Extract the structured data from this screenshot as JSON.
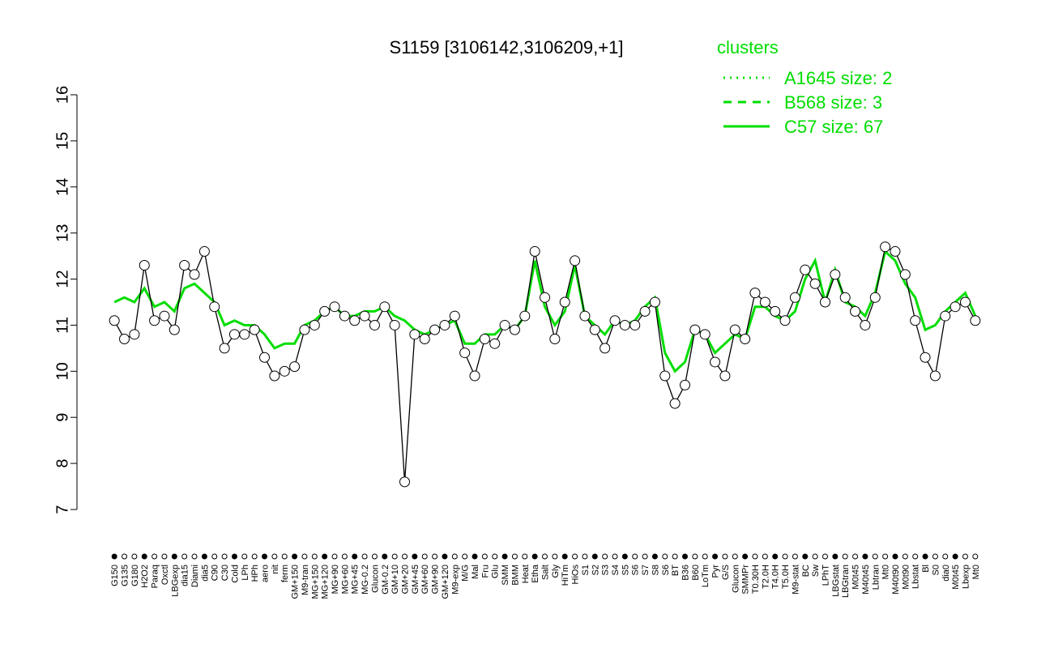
{
  "chart_data": {
    "type": "line",
    "title": "S1159 [3106142,3106209,+1]",
    "legend_title": "clusters",
    "ylim": [
      7,
      16
    ],
    "yticks": [
      7,
      8,
      9,
      10,
      11,
      12,
      13,
      14,
      15,
      16
    ],
    "categories": [
      "G150",
      "G135",
      "G180",
      "H2O2",
      "Paraq",
      "Oxctl",
      "LBGexp",
      "dia15",
      "Diami",
      "dia5",
      "C90",
      "C30",
      "Cold",
      "LPh",
      "HPh",
      "aero",
      "nit",
      "ferm",
      "GM+150",
      "M9-tran",
      "MG+150",
      "MG+120",
      "MG+90",
      "MG+60",
      "MG+45",
      "MG-0.2",
      "Glucon",
      "GM-0.2",
      "GM+10",
      "GM+20",
      "GM+45",
      "GM+60",
      "GM+90",
      "GM+120",
      "M9-exp",
      "M/G",
      "Mal",
      "Fru",
      "Glu",
      "SMM",
      "BMM",
      "Heat",
      "Etha",
      "Salt",
      "Gly",
      "HiTm",
      "HiOs",
      "S1",
      "S2",
      "S3",
      "S4",
      "S5",
      "S6",
      "S7",
      "S8",
      "S6",
      "BT",
      "B36",
      "B60",
      "LoTm",
      "Pyr",
      "G/S",
      "Glucon",
      "SMMPr",
      "T0.30H",
      "T2.0H",
      "T4.0H",
      "T5.0H",
      "M9-stat",
      "BC",
      "Sw",
      "LPhT",
      "LBGstat",
      "LBGtran",
      "M0t45",
      "M40t45",
      "Lbtran",
      "Mt0",
      "M40t90",
      "M0t90",
      "Lbstat",
      "Bl",
      "S0",
      "dia0",
      "M0t45",
      "Lbexp",
      "Mt0"
    ],
    "values": [
      11.1,
      10.7,
      10.8,
      12.3,
      11.1,
      11.2,
      10.9,
      12.3,
      12.1,
      12.6,
      11.4,
      10.5,
      10.8,
      10.8,
      10.9,
      10.3,
      9.9,
      10.0,
      10.1,
      10.9,
      11.0,
      11.3,
      11.4,
      11.2,
      11.1,
      11.2,
      11.0,
      11.4,
      11.0,
      7.6,
      10.8,
      10.7,
      10.9,
      11.0,
      11.2,
      10.4,
      9.9,
      10.7,
      10.6,
      11.0,
      10.9,
      11.2,
      12.6,
      11.6,
      10.7,
      11.5,
      12.4,
      11.2,
      10.9,
      10.5,
      11.1,
      11.0,
      11.0,
      11.3,
      11.5,
      9.9,
      9.3,
      9.7,
      10.9,
      10.8,
      10.2,
      9.9,
      10.9,
      10.7,
      11.7,
      11.5,
      11.3,
      11.1,
      11.6,
      12.2,
      11.9,
      11.5,
      12.1,
      11.6,
      11.3,
      11.0,
      11.6,
      12.7,
      12.6,
      12.1,
      11.1,
      10.3,
      9.9,
      11.2,
      11.4,
      11.5,
      11.1
    ],
    "series": [
      {
        "name": "A1645 size: 2",
        "color": "#00dd00",
        "style": "dotted",
        "values": [
          null,
          null,
          null,
          null,
          null,
          null,
          null,
          null,
          null,
          null,
          null,
          null,
          null,
          null,
          null,
          null,
          null,
          null,
          null,
          null,
          null,
          null,
          null,
          null,
          null,
          null,
          null,
          null,
          null,
          null,
          null,
          null,
          null,
          null,
          null,
          null,
          null,
          null,
          null,
          null,
          null,
          null,
          null,
          null,
          null,
          null,
          null,
          null,
          null,
          null,
          null,
          null,
          null,
          null,
          null,
          null,
          null,
          null,
          null,
          null,
          null,
          null,
          null,
          null,
          null,
          null,
          null,
          null,
          null,
          null,
          null,
          null,
          null,
          null,
          null,
          null,
          null,
          null,
          null,
          null,
          null,
          null,
          null,
          null,
          null,
          null,
          null
        ]
      },
      {
        "name": "B568 size: 3",
        "color": "#00dd00",
        "style": "dashed",
        "values": [
          null,
          null,
          null,
          null,
          null,
          null,
          null,
          null,
          null,
          null,
          null,
          null,
          null,
          null,
          null,
          null,
          null,
          null,
          null,
          null,
          null,
          null,
          null,
          null,
          null,
          null,
          null,
          null,
          null,
          null,
          null,
          null,
          null,
          null,
          null,
          null,
          null,
          null,
          null,
          null,
          null,
          null,
          null,
          null,
          null,
          null,
          null,
          null,
          null,
          null,
          null,
          null,
          null,
          null,
          null,
          null,
          null,
          null,
          null,
          null,
          null,
          null,
          null,
          null,
          null,
          null,
          null,
          null,
          null,
          null,
          null,
          null,
          null,
          null,
          null,
          null,
          null,
          null,
          null,
          null,
          null,
          null,
          null,
          null,
          null,
          null,
          null
        ]
      },
      {
        "name": "C57 size: 67",
        "color": "#00dd00",
        "style": "solid",
        "values": [
          11.5,
          11.6,
          11.5,
          11.8,
          11.4,
          11.5,
          11.3,
          11.8,
          11.9,
          11.7,
          11.5,
          11.0,
          11.1,
          11.0,
          11.0,
          10.8,
          10.5,
          10.6,
          10.6,
          11.0,
          11.1,
          11.3,
          11.4,
          11.2,
          11.2,
          11.3,
          11.3,
          11.4,
          11.2,
          11.1,
          10.9,
          10.8,
          10.9,
          11.0,
          11.1,
          10.6,
          10.6,
          10.8,
          10.8,
          11.0,
          10.9,
          11.2,
          12.4,
          11.4,
          11.0,
          11.3,
          12.3,
          11.2,
          11.0,
          10.8,
          11.1,
          11.0,
          11.1,
          11.4,
          11.6,
          10.4,
          10.0,
          10.2,
          10.9,
          10.8,
          10.4,
          10.6,
          10.8,
          10.7,
          11.4,
          11.4,
          11.2,
          11.1,
          11.3,
          12.0,
          12.4,
          11.5,
          12.2,
          11.5,
          11.4,
          11.2,
          11.7,
          12.6,
          12.4,
          11.9,
          11.6,
          10.9,
          11.0,
          11.3,
          11.5,
          11.7,
          11.2
        ]
      }
    ]
  }
}
